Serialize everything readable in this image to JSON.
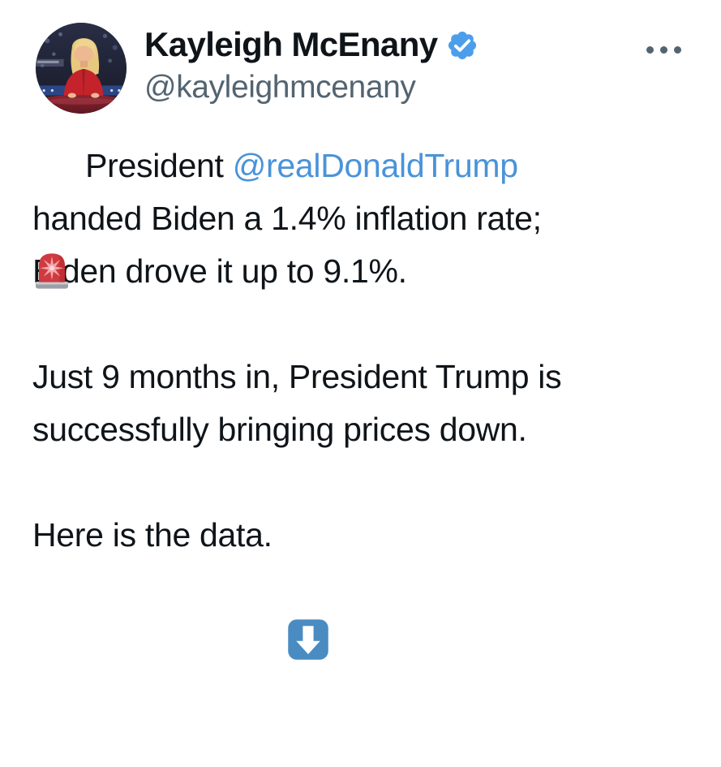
{
  "header": {
    "display_name": "Kayleigh McEnany",
    "handle": "@kayleighmcenany",
    "verified": true
  },
  "icons": {
    "verified": "verified-badge-icon",
    "more": "more-options-icon",
    "avatar": "profile-photo",
    "police_light_emoji": "🚨",
    "down_arrow_emoji": "⬇️"
  },
  "colors": {
    "text": "#0f1419",
    "secondary": "#536471",
    "link": "#4a93d9",
    "badge": "#4c9eea",
    "background": "#ffffff",
    "emoji_down_bg": "#4a8cc2",
    "siren_red": "#cf3a40",
    "siren_star": "#f2a7ab",
    "siren_base": "#9aa0a6"
  },
  "tweet": {
    "full_text": "🚨 President @realDonaldTrump handed Biden a 1.4% inflation rate; Biden drove it up to 9.1%.\n\nJust 9 months in, President Trump is successfully bringing prices down.\n\nHere is the data. ⬇️",
    "lines": [
      [
        {
          "type": "emoji",
          "name": "police-light",
          "glyph": "🚨"
        },
        {
          "type": "text",
          "text": " President "
        },
        {
          "type": "link",
          "text": "@realDonaldTrump"
        }
      ],
      [
        {
          "type": "text",
          "text": "handed Biden a 1.4% inflation rate;"
        }
      ],
      [
        {
          "type": "text",
          "text": "Biden drove it up to 9.1%."
        }
      ],
      [],
      [
        {
          "type": "text",
          "text": "Just 9 months in, President Trump is"
        }
      ],
      [
        {
          "type": "text",
          "text": "successfully bringing prices down."
        }
      ],
      [],
      [
        {
          "type": "text",
          "text": "Here is the data. "
        },
        {
          "type": "emoji",
          "name": "down-arrow",
          "glyph": "⬇️"
        }
      ]
    ]
  }
}
